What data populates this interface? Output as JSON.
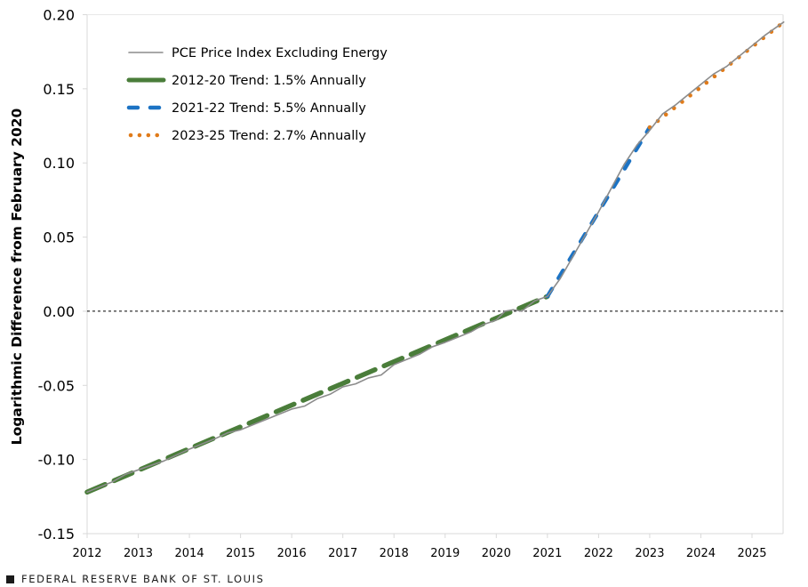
{
  "chart_data": {
    "type": "line",
    "title": "",
    "xlabel": "",
    "ylabel": "Logarithmic  Difference from February 2020",
    "xlim": [
      2012,
      2025.62
    ],
    "ylim": [
      -0.15,
      0.2
    ],
    "x_ticks": [
      2012,
      2013,
      2014,
      2015,
      2016,
      2017,
      2018,
      2019,
      2020,
      2021,
      2022,
      2023,
      2024,
      2025
    ],
    "x_tick_labels": [
      "2012",
      "2013",
      "2014",
      "2015",
      "2016",
      "2017",
      "2018",
      "2019",
      "2020",
      "2021",
      "2022",
      "2023",
      "2024",
      "2025"
    ],
    "y_ticks": [
      -0.15,
      -0.1,
      -0.05,
      0.0,
      0.05,
      0.1,
      0.15,
      0.2
    ],
    "y_tick_labels": [
      "-0.15",
      "-0.10",
      "-0.05",
      "0.00",
      "0.05",
      "0.10",
      "0.15",
      "0.20"
    ],
    "zero_line": true,
    "grid": false,
    "legend_position": "top-left",
    "series": [
      {
        "name": "PCE Price Index Excluding Energy",
        "style": "solid",
        "color": "#8c8c8c",
        "x": [
          2012.0,
          2012.5,
          2012.75,
          2013.0,
          2013.5,
          2013.75,
          2014.0,
          2014.5,
          2014.75,
          2015.0,
          2015.5,
          2016.0,
          2016.25,
          2016.5,
          2016.75,
          2017.0,
          2017.25,
          2017.5,
          2017.75,
          2018.0,
          2018.5,
          2018.75,
          2019.0,
          2019.5,
          2019.75,
          2020.0,
          2020.17,
          2020.33,
          2020.5,
          2020.75,
          2021.0,
          2021.25,
          2021.5,
          2021.75,
          2022.0,
          2022.25,
          2022.5,
          2022.75,
          2023.0,
          2023.25,
          2023.5,
          2023.75,
          2024.0,
          2024.25,
          2024.5,
          2024.75,
          2025.0,
          2025.25,
          2025.62
        ],
        "y": [
          -0.122,
          -0.115,
          -0.11,
          -0.107,
          -0.101,
          -0.097,
          -0.093,
          -0.086,
          -0.082,
          -0.08,
          -0.073,
          -0.066,
          -0.064,
          -0.059,
          -0.056,
          -0.051,
          -0.049,
          -0.045,
          -0.043,
          -0.036,
          -0.029,
          -0.024,
          -0.021,
          -0.014,
          -0.009,
          -0.006,
          0.0,
          0.001,
          0.0,
          0.007,
          0.01,
          0.022,
          0.037,
          0.052,
          0.067,
          0.083,
          0.099,
          0.112,
          0.122,
          0.133,
          0.139,
          0.146,
          0.153,
          0.16,
          0.165,
          0.172,
          0.179,
          0.186,
          0.195
        ]
      },
      {
        "name": "2012-20 Trend: 1.5% Annually",
        "style": "long-dash",
        "color": "#4a7d3a",
        "x": [
          2012.0,
          2021.0
        ],
        "y": [
          -0.122,
          0.01
        ]
      },
      {
        "name": "2021-22 Trend: 5.5% Annually",
        "style": "dash",
        "color": "#1c73c4",
        "x": [
          2021.0,
          2023.0
        ],
        "y": [
          0.01,
          0.124
        ]
      },
      {
        "name": "2023-25 Trend: 2.7% Annually",
        "style": "dot",
        "color": "#e07b1a",
        "x": [
          2023.0,
          2025.62
        ],
        "y": [
          0.124,
          0.195
        ]
      }
    ]
  },
  "footer": {
    "source": "FEDERAL RESERVE BANK OF ST. LOUIS"
  }
}
